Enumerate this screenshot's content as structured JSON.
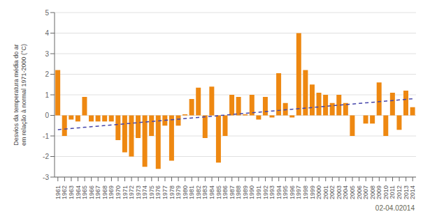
{
  "chart_data": {
    "type": "bar",
    "ylabel": "Desvios da temperatura média do ar\nem relação à normal 1971-2000 (°C)",
    "annotations": [
      "02-04.02014"
    ],
    "categories": [
      "1961",
      "1962",
      "1963",
      "1964",
      "1965",
      "1966",
      "1967",
      "1968",
      "1969",
      "1970",
      "1971",
      "1972",
      "1973",
      "1974",
      "1975",
      "1976",
      "1977",
      "1978",
      "1979",
      "1980",
      "1981",
      "1982",
      "1983",
      "1984",
      "1985",
      "1986",
      "1987",
      "1988",
      "1989",
      "1990",
      "1991",
      "1992",
      "1993",
      "1994",
      "1995",
      "1996",
      "1997",
      "1998",
      "1999",
      "2000",
      "2001",
      "2002",
      "2003",
      "2004",
      "2005",
      "2006",
      "2007",
      "2008",
      "2009",
      "2010",
      "2011",
      "2012",
      "2013",
      "2014"
    ],
    "series": [
      {
        "type": "bar",
        "color": "#ee8811",
        "values": [
          2.2,
          -1.0,
          -0.2,
          -0.3,
          0.9,
          -0.3,
          -0.3,
          -0.3,
          -0.3,
          -1.2,
          -1.8,
          -2.0,
          -1.1,
          -2.5,
          -1.0,
          -2.6,
          -0.5,
          -2.2,
          -0.5,
          0.05,
          0.8,
          1.35,
          -1.1,
          1.4,
          -2.3,
          -1.0,
          1.0,
          0.9,
          0.05,
          1.0,
          -0.2,
          0.9,
          -0.1,
          2.05,
          0.6,
          -0.1,
          4.0,
          2.2,
          1.5,
          1.1,
          1.0,
          0.6,
          1.0,
          0.6,
          -1.0,
          0.0,
          -0.4,
          -0.4,
          1.6,
          -1.0,
          1.1,
          -0.7,
          1.2,
          0.4
        ]
      },
      {
        "type": "line",
        "line_style": "dashed",
        "color": "#4444aa",
        "values": [
          -0.6935,
          -0.6652,
          -0.6368,
          -0.6085,
          -0.5802,
          -0.5518,
          -0.5235,
          -0.4951,
          -0.4668,
          -0.4385,
          -0.4101,
          -0.3818,
          -0.3535,
          -0.3251,
          -0.2968,
          -0.2685,
          -0.2401,
          -0.2118,
          -0.1835,
          -0.1551,
          -0.1268,
          -0.0984,
          -0.0701,
          -0.0418,
          -0.0134,
          0.0149,
          0.0432,
          0.0716,
          0.0999,
          0.1282,
          0.1566,
          0.1849,
          0.2133,
          0.2416,
          0.2699,
          0.2983,
          0.3266,
          0.3549,
          0.3833,
          0.4116,
          0.4399,
          0.4683,
          0.4967,
          0.525,
          0.5533,
          0.5817,
          0.61,
          0.6383,
          0.6667,
          0.695,
          0.7233,
          0.7517,
          0.78,
          0.8084
        ]
      }
    ],
    "ylim": [
      -3.0,
      5.0
    ],
    "yticks": [
      -3.0,
      -2.0,
      -1.0,
      0.0,
      1.0,
      2.0,
      3.0,
      4.0,
      5.0
    ],
    "grid": true
  }
}
